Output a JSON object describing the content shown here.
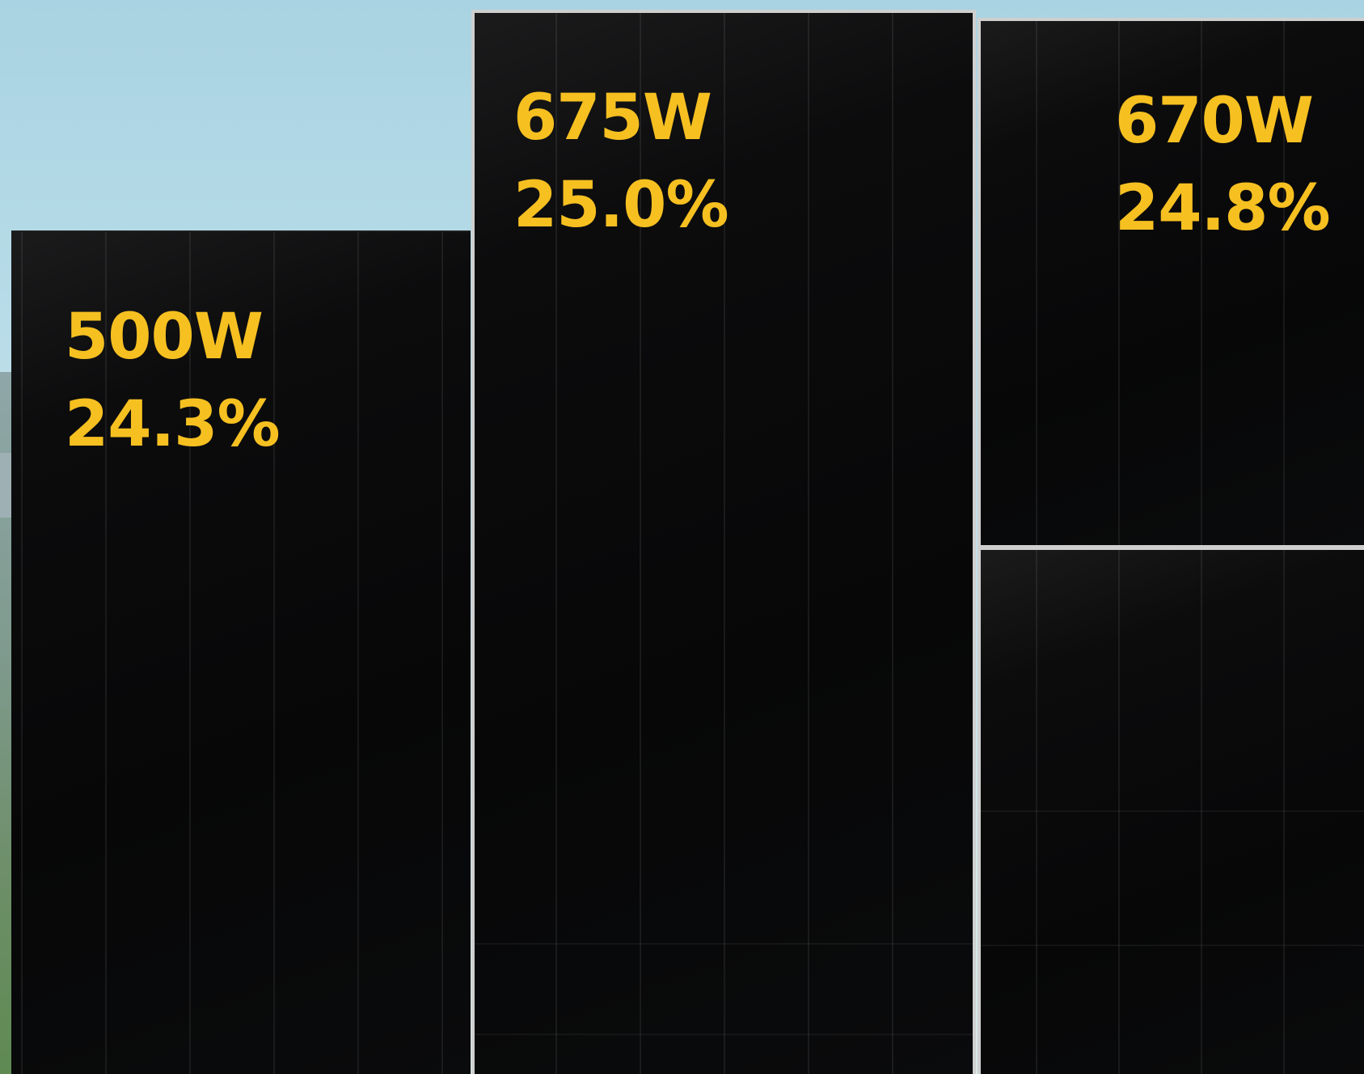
{
  "panels": [
    {
      "power": "500W",
      "efficiency": "24.3%"
    },
    {
      "power": "675W",
      "efficiency": "25.0%"
    },
    {
      "power": "670W",
      "efficiency": "24.8%"
    }
  ],
  "colors": {
    "label": "#f6c021",
    "panel": "#080809",
    "frame": "#cfcfcf",
    "sky": "#b8dce8"
  }
}
